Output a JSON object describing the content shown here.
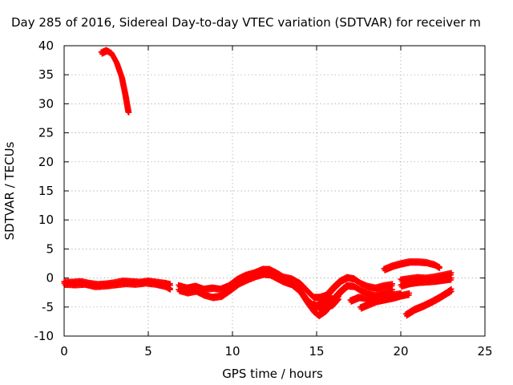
{
  "chart_data": {
    "type": "scatter",
    "title": "Day 285 of 2016, Sidereal Day-to-day VTEC variation (SDTVAR) for receiver m",
    "xlabel": "GPS time / hours",
    "ylabel": "SDTVAR / TECUs",
    "xlim": [
      0,
      25
    ],
    "ylim": [
      -10,
      40
    ],
    "xticks": [
      0,
      5,
      10,
      15,
      20,
      25
    ],
    "yticks": [
      -10,
      -5,
      0,
      5,
      10,
      15,
      20,
      25,
      30,
      35,
      40
    ],
    "grid": true,
    "legend": "none",
    "series": [
      {
        "color": "#ff0000",
        "marker": "plus",
        "tracks": [
          [
            [
              2.2,
              38.9
            ],
            [
              2.5,
              39.3
            ],
            [
              2.8,
              38.8
            ],
            [
              3.1,
              37.2
            ],
            [
              3.4,
              34.7
            ],
            [
              3.6,
              31.9
            ],
            [
              3.8,
              28.6
            ]
          ],
          [
            [
              0.0,
              -0.6
            ],
            [
              0.5,
              -0.6
            ],
            [
              1.0,
              -0.5
            ],
            [
              1.5,
              -0.8
            ],
            [
              2.0,
              -1.0
            ],
            [
              2.5,
              -0.9
            ],
            [
              3.0,
              -0.7
            ],
            [
              3.5,
              -0.4
            ],
            [
              4.0,
              -0.5
            ],
            [
              4.5,
              -0.6
            ],
            [
              5.0,
              -0.4
            ],
            [
              5.5,
              -0.6
            ],
            [
              6.0,
              -0.8
            ],
            [
              6.3,
              -1.0
            ]
          ],
          [
            [
              0.0,
              -0.9
            ],
            [
              0.6,
              -1.0
            ],
            [
              1.2,
              -0.9
            ],
            [
              1.8,
              -1.3
            ],
            [
              2.4,
              -1.2
            ],
            [
              3.0,
              -1.0
            ],
            [
              3.6,
              -0.8
            ],
            [
              4.2,
              -0.9
            ],
            [
              4.8,
              -0.7
            ],
            [
              5.4,
              -0.9
            ],
            [
              6.0,
              -1.3
            ],
            [
              6.3,
              -1.8
            ]
          ],
          [
            [
              6.8,
              -1.2
            ],
            [
              7.3,
              -1.6
            ],
            [
              7.8,
              -1.3
            ],
            [
              8.3,
              -1.8
            ],
            [
              8.8,
              -1.6
            ],
            [
              9.3,
              -1.8
            ],
            [
              9.8,
              -1.2
            ],
            [
              10.3,
              -0.1
            ],
            [
              10.8,
              0.6
            ],
            [
              11.3,
              1.0
            ],
            [
              11.8,
              1.6
            ],
            [
              12.2,
              1.6
            ],
            [
              12.6,
              1.0
            ],
            [
              13.0,
              0.3
            ],
            [
              13.5,
              0.0
            ],
            [
              14.0,
              -0.8
            ],
            [
              14.4,
              -2.0
            ],
            [
              14.8,
              -3.2
            ],
            [
              15.2,
              -3.2
            ],
            [
              15.6,
              -2.8
            ],
            [
              16.0,
              -1.5
            ],
            [
              16.4,
              -0.4
            ],
            [
              16.8,
              0.2
            ],
            [
              17.2,
              0.0
            ],
            [
              17.6,
              -0.8
            ],
            [
              18.0,
              -1.3
            ],
            [
              18.5,
              -1.6
            ],
            [
              19.0,
              -1.2
            ],
            [
              19.5,
              -1.0
            ]
          ],
          [
            [
              6.8,
              -2.0
            ],
            [
              7.3,
              -2.4
            ],
            [
              7.8,
              -2.1
            ],
            [
              8.3,
              -2.8
            ],
            [
              8.8,
              -3.2
            ],
            [
              9.3,
              -3.0
            ],
            [
              9.8,
              -2.0
            ],
            [
              10.3,
              -0.9
            ],
            [
              10.8,
              -0.2
            ],
            [
              11.3,
              0.4
            ],
            [
              11.8,
              0.8
            ],
            [
              12.2,
              0.7
            ],
            [
              12.6,
              0.1
            ],
            [
              13.0,
              -0.5
            ],
            [
              13.5,
              -1.0
            ],
            [
              14.0,
              -2.2
            ],
            [
              14.4,
              -4.0
            ],
            [
              14.8,
              -5.6
            ],
            [
              15.1,
              -6.3
            ],
            [
              15.5,
              -5.5
            ],
            [
              16.0,
              -3.5
            ],
            [
              16.4,
              -2.2
            ],
            [
              16.8,
              -1.2
            ],
            [
              17.2,
              -1.3
            ],
            [
              17.6,
              -2.0
            ],
            [
              18.0,
              -2.5
            ],
            [
              18.5,
              -2.9
            ],
            [
              19.0,
              -2.4
            ],
            [
              19.5,
              -2.0
            ]
          ],
          [
            [
              9.5,
              -2.5
            ],
            [
              9.9,
              -1.6
            ],
            [
              10.4,
              -0.4
            ],
            [
              10.9,
              0.2
            ],
            [
              11.4,
              0.7
            ],
            [
              11.9,
              1.1
            ],
            [
              12.3,
              1.0
            ],
            [
              12.8,
              0.4
            ],
            [
              13.3,
              -0.2
            ],
            [
              13.8,
              -1.2
            ],
            [
              14.2,
              -2.7
            ],
            [
              14.6,
              -4.3
            ],
            [
              15.0,
              -4.6
            ],
            [
              15.4,
              -4.2
            ],
            [
              15.8,
              -2.6
            ]
          ],
          [
            [
              14.4,
              -3.6
            ],
            [
              14.9,
              -4.8
            ],
            [
              15.4,
              -5.1
            ],
            [
              15.9,
              -4.5
            ],
            [
              16.3,
              -3.2
            ]
          ],
          [
            [
              17.0,
              -3.8
            ],
            [
              17.5,
              -3.2
            ],
            [
              18.0,
              -3.4
            ],
            [
              18.5,
              -3.8
            ],
            [
              19.0,
              -3.2
            ],
            [
              19.5,
              -2.8
            ],
            [
              20.0,
              -2.6
            ]
          ],
          [
            [
              17.6,
              -5.0
            ],
            [
              18.0,
              -4.5
            ],
            [
              18.5,
              -3.9
            ],
            [
              19.0,
              -3.6
            ],
            [
              19.5,
              -3.3
            ],
            [
              20.0,
              -2.9
            ],
            [
              20.5,
              -2.6
            ]
          ],
          [
            [
              19.0,
              1.6
            ],
            [
              19.5,
              2.2
            ],
            [
              20.0,
              2.6
            ],
            [
              20.5,
              2.9
            ],
            [
              21.0,
              2.9
            ],
            [
              21.5,
              2.8
            ],
            [
              22.0,
              2.4
            ],
            [
              22.3,
              1.9
            ]
          ],
          [
            [
              20.0,
              -0.2
            ],
            [
              20.5,
              0.0
            ],
            [
              21.0,
              0.2
            ],
            [
              21.5,
              0.1
            ],
            [
              22.0,
              0.3
            ],
            [
              22.5,
              0.6
            ],
            [
              23.0,
              0.9
            ]
          ],
          [
            [
              20.0,
              -1.2
            ],
            [
              20.5,
              -0.8
            ],
            [
              21.0,
              -0.6
            ],
            [
              21.5,
              -0.5
            ],
            [
              22.0,
              -0.4
            ],
            [
              22.5,
              -0.2
            ],
            [
              23.0,
              0.0
            ]
          ],
          [
            [
              20.3,
              -6.2
            ],
            [
              20.8,
              -5.3
            ],
            [
              21.3,
              -4.7
            ],
            [
              21.8,
              -4.0
            ],
            [
              22.3,
              -3.2
            ],
            [
              22.8,
              -2.3
            ],
            [
              23.0,
              -1.9
            ]
          ]
        ]
      }
    ]
  }
}
